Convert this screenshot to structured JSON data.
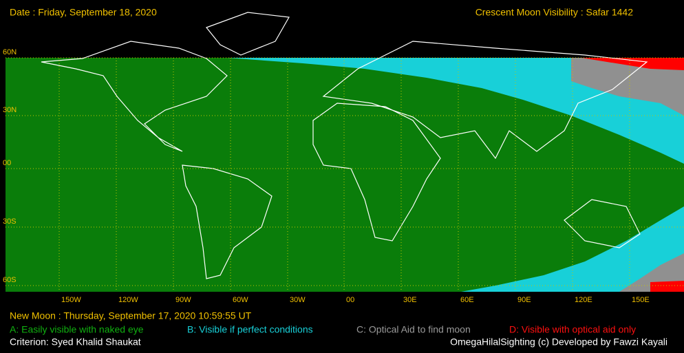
{
  "header": {
    "date": "Date : Friday, September 18, 2020",
    "title": "Crescent Moon Visibility : Safar  1442"
  },
  "latitude_labels": [
    "60N",
    "30N",
    "00",
    "30S",
    "60S"
  ],
  "longitude_labels": [
    "150W",
    "120W",
    "90W",
    "60W",
    "30W",
    "00",
    "30E",
    "60E",
    "90E",
    "120E",
    "150E"
  ],
  "new_moon": "New Moon : Thursday, September 17, 2020  10:59:55  UT",
  "legend": [
    "A: Easily visible with naked eye",
    "B: Visible if perfect conditions",
    "C: Optical Aid to find moon",
    "D: Visible with optical aid only"
  ],
  "criterion": "Criterion: Syed Khalid Shaukat",
  "credit": "OmegaHilalSighting  (c)  Developed by Fawzi Kayali"
}
